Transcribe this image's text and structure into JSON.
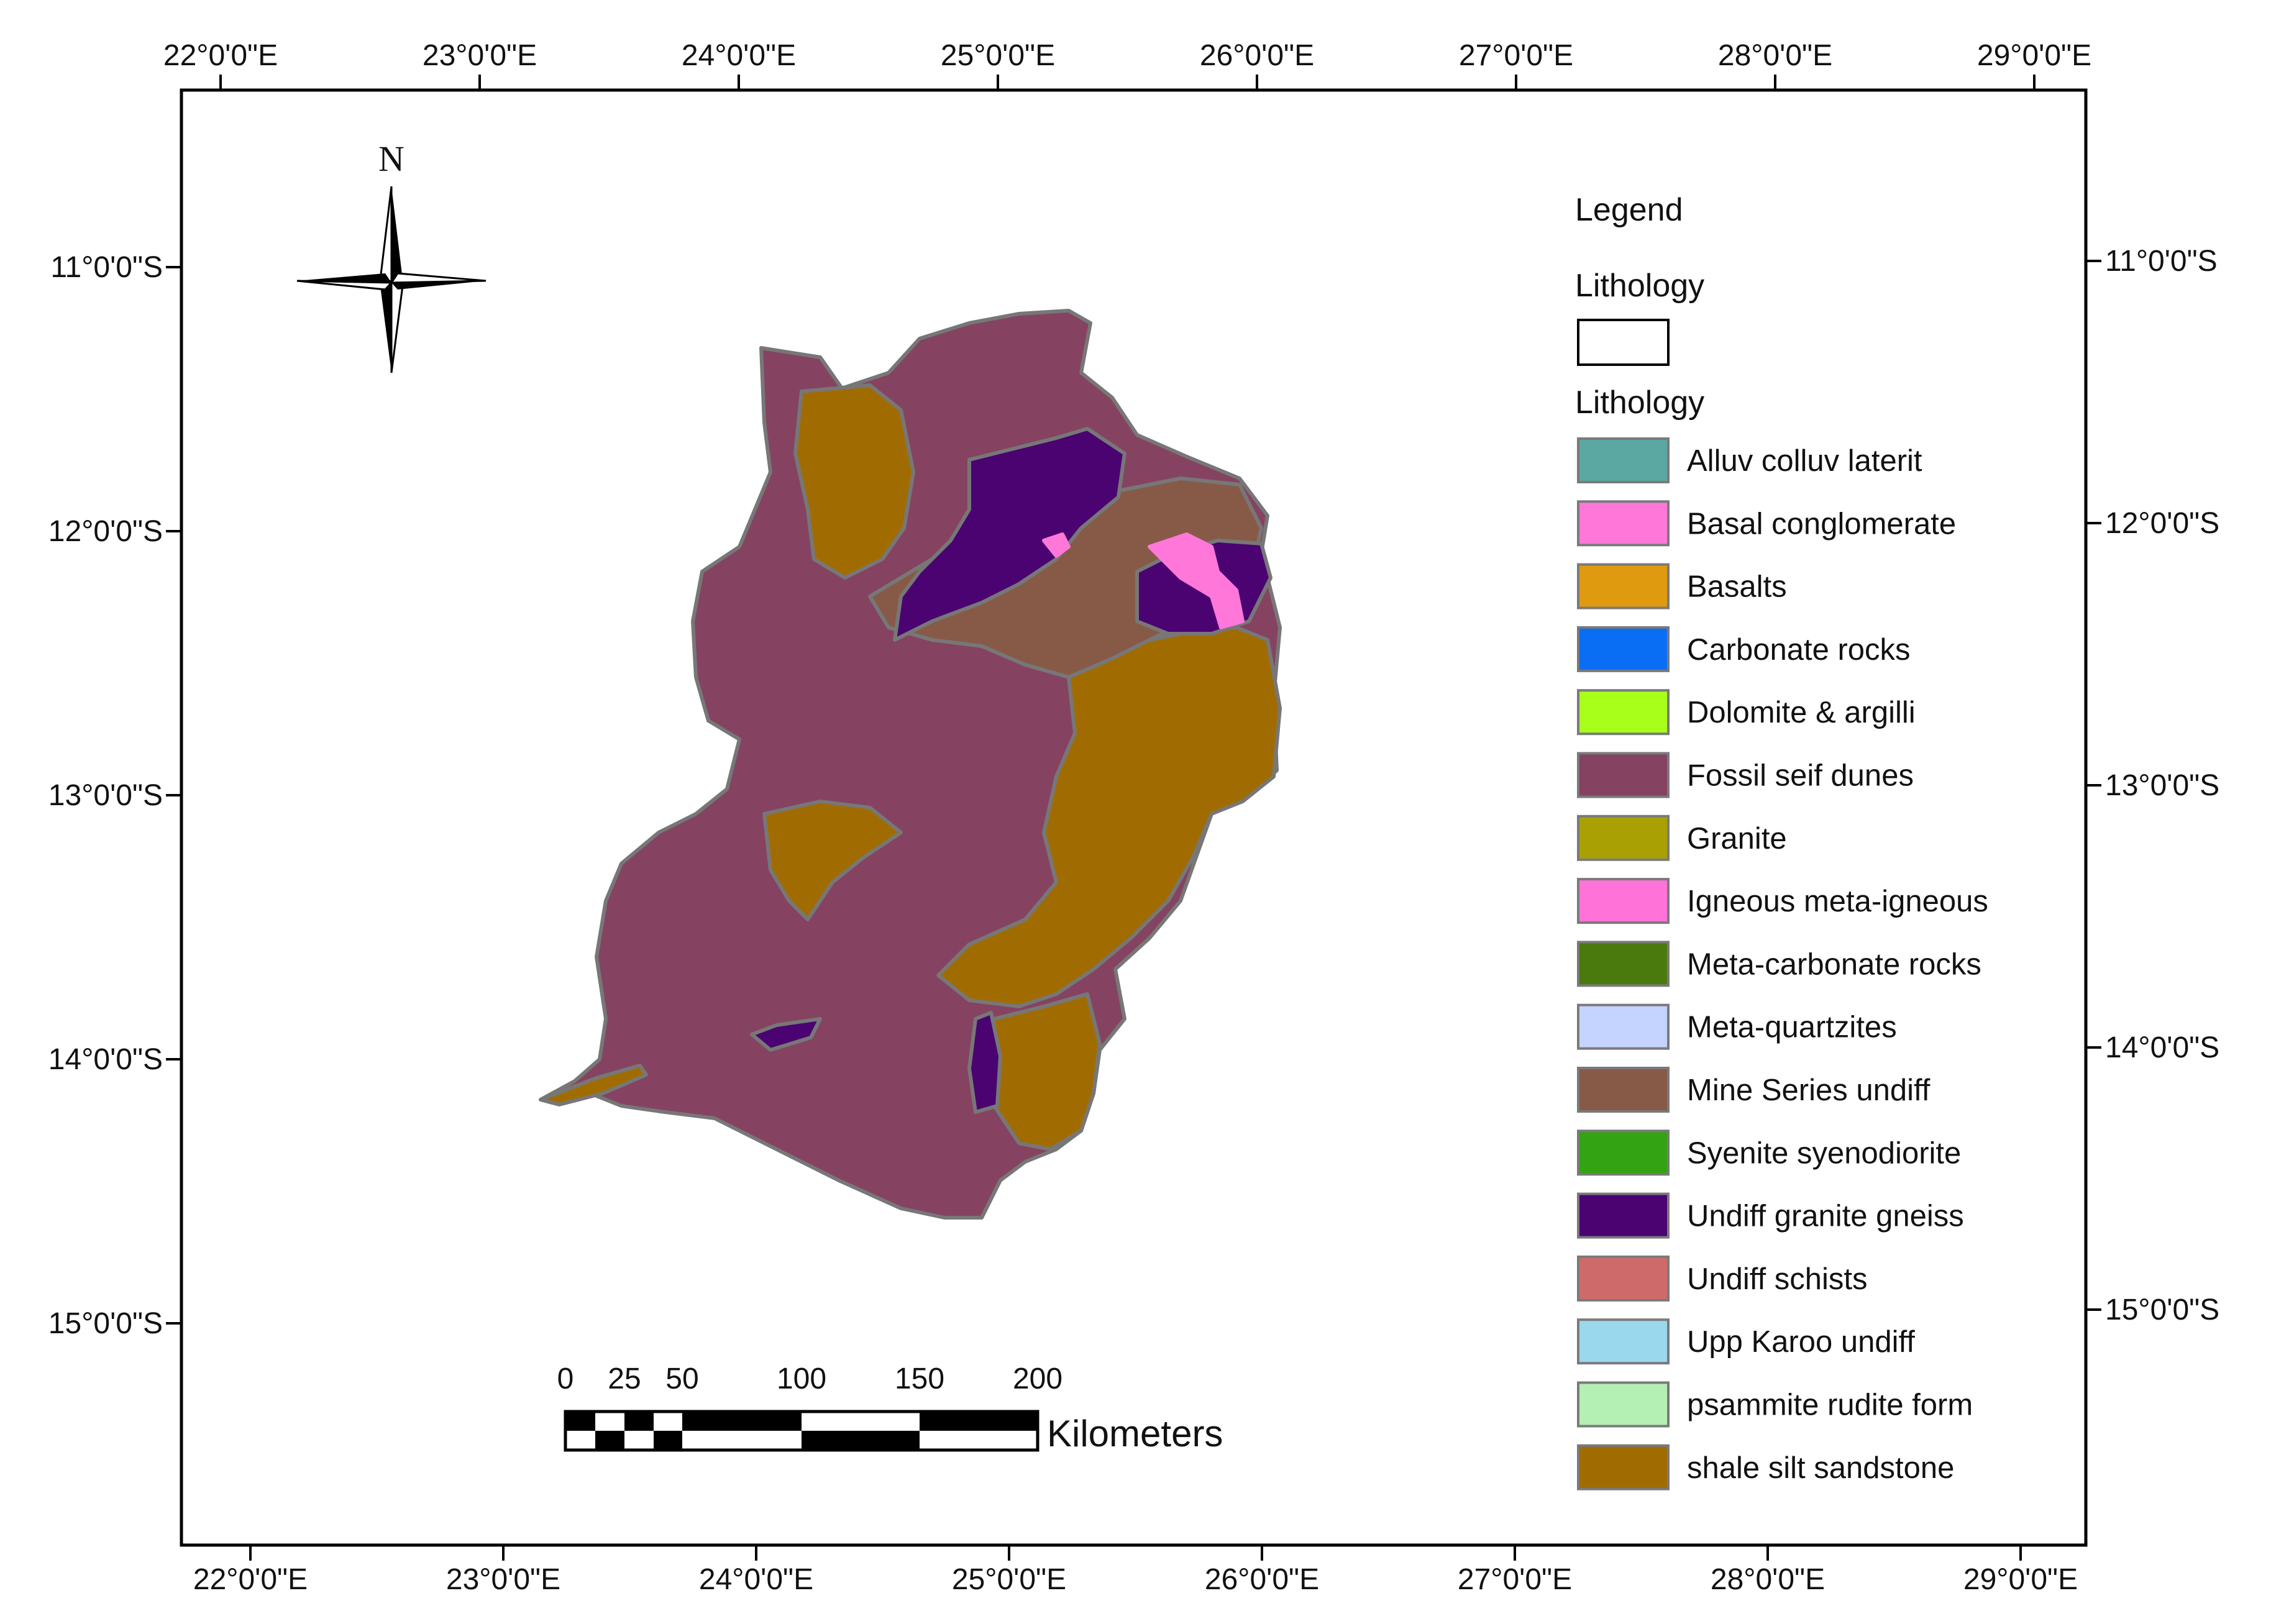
{
  "map": {
    "lon_ticks_top": [
      "22°0'0\"E",
      "23°0'0\"E",
      "24°0'0\"E",
      "25°0'0\"E",
      "26°0'0\"E",
      "27°0'0\"E",
      "28°0'0\"E",
      "29°0'0\"E"
    ],
    "lon_ticks_bottom": [
      "22°0'0\"E",
      "23°0'0\"E",
      "24°0'0\"E",
      "25°0'0\"E",
      "26°0'0\"E",
      "27°0'0\"E",
      "28°0'0\"E",
      "29°0'0\"E"
    ],
    "lat_ticks_left": [
      "11°0'0\"S",
      "12°0'0\"S",
      "13°0'0\"S",
      "14°0'0\"S",
      "15°0'0\"S"
    ],
    "lat_ticks_right": [
      "11°0'0\"S",
      "12°0'0\"S",
      "13°0'0\"S",
      "14°0'0\"S",
      "15°0'0\"S"
    ],
    "north_arrow": {
      "label": "N",
      "icon": "north-arrow-compass-icon"
    }
  },
  "legend": {
    "title": "Legend",
    "group1_title": "Lithology",
    "group2_title": "Lithology",
    "items": [
      {
        "label": "Alluv colluv laterit",
        "color": "#5aa8a1"
      },
      {
        "label": "Basal conglomerate",
        "color": "#ff77d9"
      },
      {
        "label": "Basalts",
        "color": "#e09a10"
      },
      {
        "label": "Carbonate rocks",
        "color": "#0a6ef5"
      },
      {
        "label": "Dolomite & argilli",
        "color": "#a8ff1a"
      },
      {
        "label": "Fossil seif dunes",
        "color": "#854361"
      },
      {
        "label": "Granite",
        "color": "#a9a104"
      },
      {
        "label": "Igneous meta-igneous",
        "color": "#ff72d8"
      },
      {
        "label": "Meta-carbonate rocks",
        "color": "#4a7a0d"
      },
      {
        "label": "Meta-quartzites",
        "color": "#c4d4ff"
      },
      {
        "label": "Mine Series undiff",
        "color": "#875a48"
      },
      {
        "label": "Syenite syenodiorite",
        "color": "#34a313"
      },
      {
        "label": "Undiff granite gneiss",
        "color": "#4b0372"
      },
      {
        "label": "Undiff schists",
        "color": "#cf6a6a"
      },
      {
        "label": "Upp Karoo undiff",
        "color": "#9ad8ee"
      },
      {
        "label": "psammite rudite form",
        "color": "#b4f0b4"
      },
      {
        "label": "shale silt sandstone",
        "color": "#a06c02"
      }
    ]
  },
  "scale_bar": {
    "labels": [
      "0",
      "25",
      "50",
      "100",
      "150",
      "200"
    ],
    "unit": "Kilometers"
  },
  "colors": {
    "frame": "#000000",
    "boundary": "#777777",
    "fossil_dunes": "#854361",
    "shale": "#a06c02",
    "mine_series": "#875a48",
    "granite_gneiss": "#4b0372",
    "conglomerate": "#ff77d9"
  }
}
